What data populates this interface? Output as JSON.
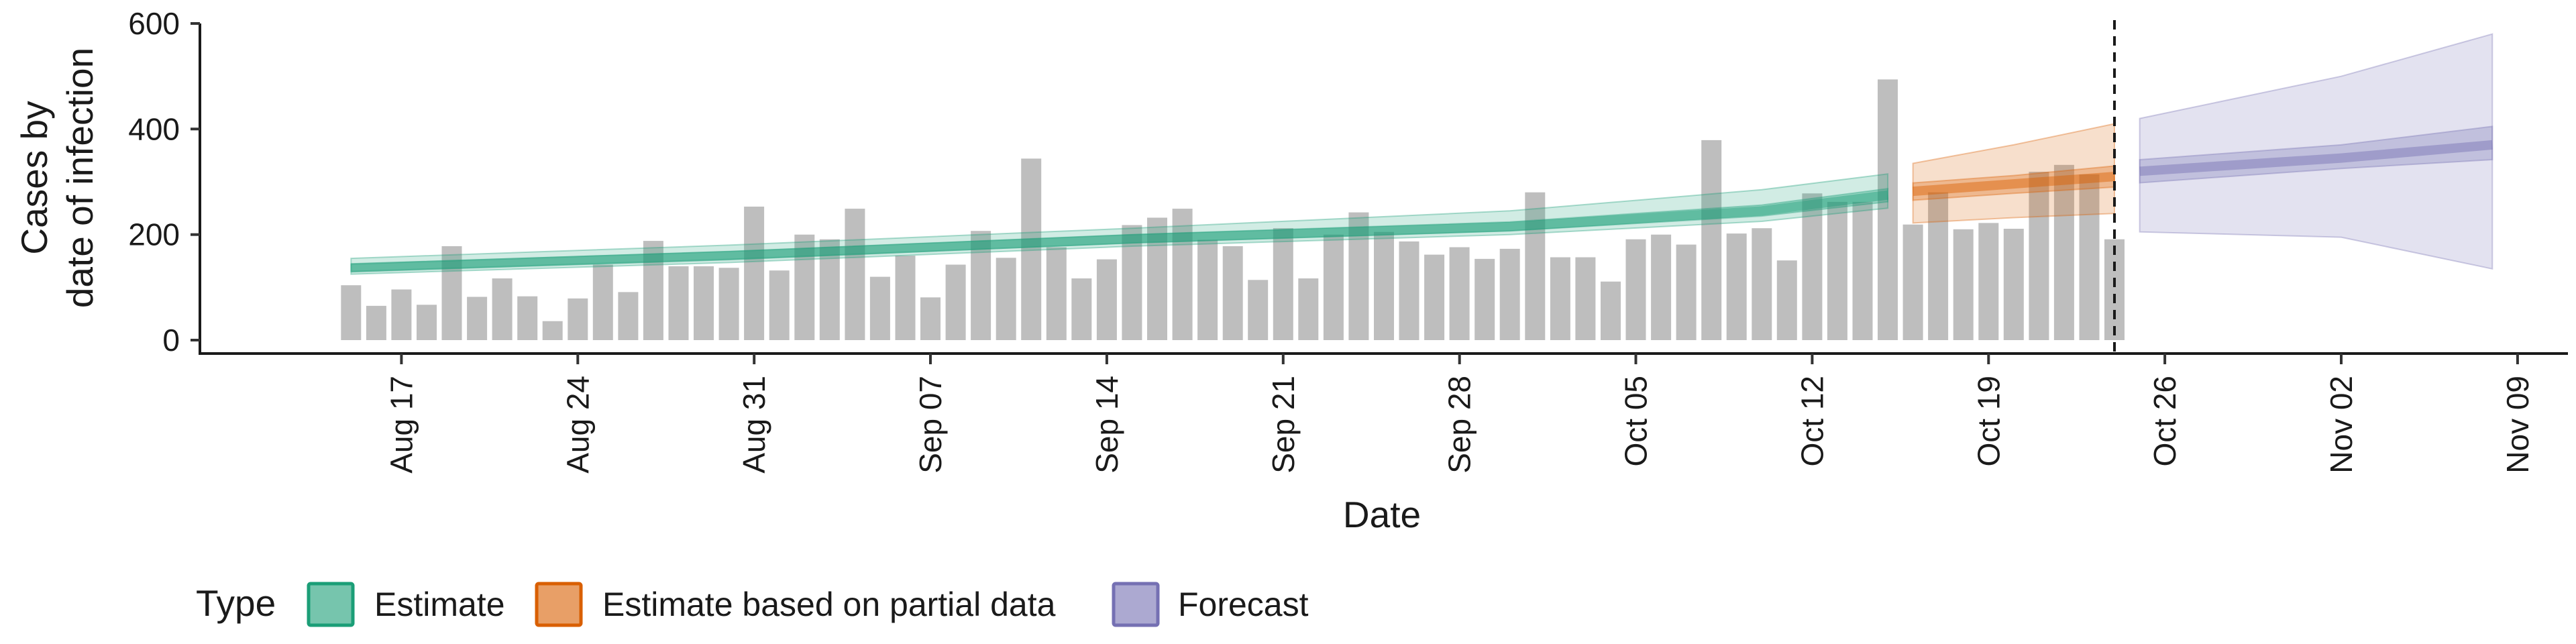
{
  "chart_data": {
    "type": "bar",
    "xlabel": "Date",
    "ylabel_lines": [
      "Cases by",
      "date of infection"
    ],
    "ylim": [
      0,
      600
    ],
    "y_ticks": [
      0,
      200,
      400,
      600
    ],
    "x_range": [
      "2020-08-09",
      "2020-11-11"
    ],
    "x_ticks": [
      {
        "date": "2020-08-17",
        "label": "Aug 17"
      },
      {
        "date": "2020-08-24",
        "label": "Aug 24"
      },
      {
        "date": "2020-08-31",
        "label": "Aug 31"
      },
      {
        "date": "2020-09-07",
        "label": "Sep 07"
      },
      {
        "date": "2020-09-14",
        "label": "Sep 14"
      },
      {
        "date": "2020-09-21",
        "label": "Sep 21"
      },
      {
        "date": "2020-09-28",
        "label": "Sep 28"
      },
      {
        "date": "2020-10-05",
        "label": "Oct 05"
      },
      {
        "date": "2020-10-12",
        "label": "Oct 12"
      },
      {
        "date": "2020-10-19",
        "label": "Oct 19"
      },
      {
        "date": "2020-10-26",
        "label": "Oct 26"
      },
      {
        "date": "2020-11-02",
        "label": "Nov 02"
      },
      {
        "date": "2020-11-09",
        "label": "Nov 09"
      }
    ],
    "bars": {
      "start_date": "2020-08-15",
      "values": [
        104,
        65,
        96,
        67,
        178,
        82,
        117,
        83,
        36,
        79,
        143,
        91,
        188,
        140,
        140,
        137,
        253,
        132,
        200,
        191,
        249,
        120,
        160,
        81,
        143,
        207,
        156,
        344,
        176,
        117,
        153,
        218,
        232,
        249,
        190,
        178,
        114,
        212,
        117,
        200,
        242,
        205,
        187,
        162,
        176,
        154,
        173,
        280,
        157,
        157,
        111,
        191,
        200,
        181,
        379,
        202,
        212,
        151,
        278,
        262,
        262,
        494,
        219,
        280,
        210,
        222,
        211,
        319,
        332,
        314,
        191
      ],
      "color": "#bebebe"
    },
    "vline_date": "2020-10-24",
    "series": [
      {
        "name": "Estimate",
        "color": "#1b9e77",
        "date": [
          "2020-08-15",
          "2020-08-30",
          "2020-09-15",
          "2020-09-30",
          "2020-10-10",
          "2020-10-15"
        ],
        "median": [
          137,
          160,
          192,
          215,
          245,
          275
        ],
        "lower_50": [
          130,
          153,
          184,
          207,
          235,
          262
        ],
        "upper_50": [
          144,
          168,
          200,
          224,
          256,
          287
        ],
        "lower_90": [
          125,
          147,
          178,
          200,
          225,
          250
        ],
        "upper_90": [
          155,
          180,
          212,
          245,
          285,
          315
        ]
      },
      {
        "name": "Estimate based on partial data",
        "color": "#d95f02",
        "date": [
          "2020-10-16",
          "2020-10-20",
          "2020-10-24"
        ],
        "median": [
          282,
          296,
          310
        ],
        "lower_50": [
          265,
          278,
          290
        ],
        "upper_50": [
          298,
          312,
          330
        ],
        "lower_90": [
          222,
          232,
          240
        ],
        "upper_90": [
          335,
          370,
          410
        ]
      },
      {
        "name": "Forecast",
        "color": "#7570b3",
        "date": [
          "2020-10-25",
          "2020-11-02",
          "2020-11-08"
        ],
        "median": [
          320,
          345,
          370
        ],
        "lower_50": [
          298,
          325,
          342
        ],
        "upper_50": [
          342,
          370,
          405
        ],
        "lower_90": [
          205,
          195,
          135
        ],
        "upper_90": [
          420,
          500,
          580
        ]
      }
    ]
  },
  "legend": {
    "title": "Type",
    "items": [
      {
        "label": "Estimate",
        "color": "#1b9e77"
      },
      {
        "label": "Estimate based on partial data",
        "color": "#d95f02"
      },
      {
        "label": "Forecast",
        "color": "#7570b3"
      }
    ]
  }
}
